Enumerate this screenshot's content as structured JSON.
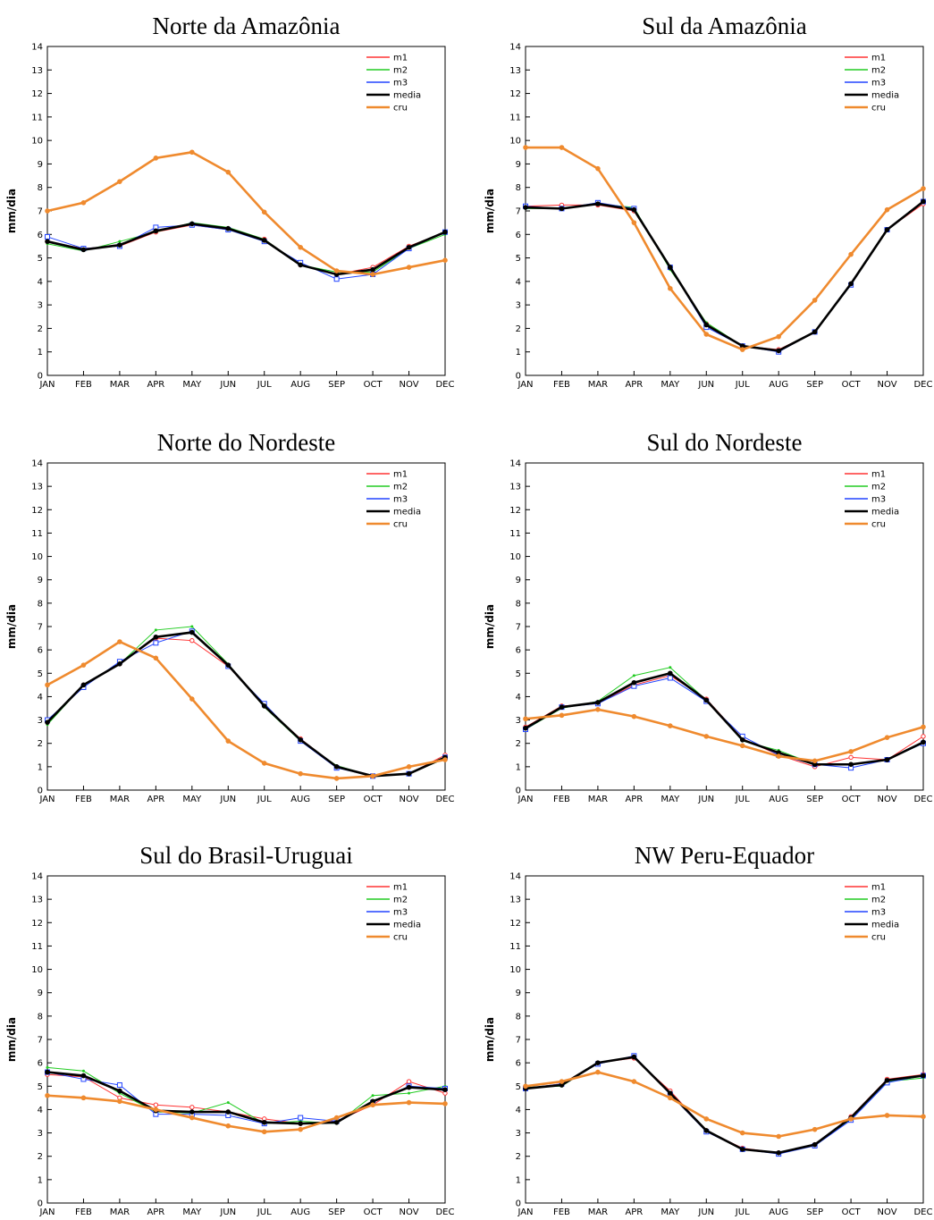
{
  "chart_data": [
    {
      "type": "line",
      "title": "Norte da Amazônia",
      "ylabel": "mm/dia",
      "legend": "upper right",
      "categories": [
        "JAN",
        "FEB",
        "MAR",
        "APR",
        "MAY",
        "JUN",
        "JUL",
        "AUG",
        "SEP",
        "OCT",
        "NOV",
        "DEC"
      ],
      "ylim": [
        0,
        14
      ],
      "yticks": [
        0,
        1,
        2,
        3,
        4,
        5,
        6,
        7,
        8,
        9,
        10,
        11,
        12,
        13,
        14
      ],
      "series": [
        {
          "name": "m1",
          "color": "#ff3333",
          "values": [
            5.7,
            5.4,
            5.5,
            6.1,
            6.4,
            6.2,
            5.8,
            4.7,
            4.3,
            4.6,
            5.5,
            6.1
          ]
        },
        {
          "name": "m2",
          "color": "#22cc22",
          "values": [
            5.6,
            5.3,
            5.7,
            6.1,
            6.5,
            6.3,
            5.8,
            4.7,
            4.4,
            4.4,
            5.4,
            6.0
          ]
        },
        {
          "name": "m3",
          "color": "#2244ff",
          "values": [
            5.9,
            5.4,
            5.5,
            6.3,
            6.4,
            6.2,
            5.7,
            4.8,
            4.1,
            4.3,
            5.4,
            6.1
          ]
        },
        {
          "name": "media",
          "color": "#000000",
          "values": [
            5.7,
            5.35,
            5.55,
            6.15,
            6.45,
            6.25,
            5.75,
            4.7,
            4.3,
            4.5,
            5.45,
            6.1
          ]
        },
        {
          "name": "cru",
          "color": "#ef8a2e",
          "values": [
            7.0,
            7.35,
            8.25,
            9.25,
            9.5,
            8.65,
            6.95,
            5.45,
            4.45,
            4.3,
            4.6,
            4.9
          ]
        }
      ]
    },
    {
      "type": "line",
      "title": "Sul da Amazônia",
      "ylabel": "mm/dia",
      "legend": "upper right",
      "categories": [
        "JAN",
        "FEB",
        "MAR",
        "APR",
        "MAY",
        "JUN",
        "JUL",
        "AUG",
        "SEP",
        "OCT",
        "NOV",
        "DEC"
      ],
      "ylim": [
        0,
        14
      ],
      "yticks": [
        0,
        1,
        2,
        3,
        4,
        5,
        6,
        7,
        8,
        9,
        10,
        11,
        12,
        13,
        14
      ],
      "series": [
        {
          "name": "m1",
          "color": "#ff3333",
          "values": [
            7.2,
            7.25,
            7.25,
            7.0,
            4.6,
            2.2,
            1.25,
            1.1,
            1.85,
            3.9,
            6.2,
            7.3
          ]
        },
        {
          "name": "m2",
          "color": "#22cc22",
          "values": [
            7.1,
            7.1,
            7.3,
            7.15,
            4.5,
            2.25,
            1.25,
            1.05,
            1.85,
            3.9,
            6.2,
            7.4
          ]
        },
        {
          "name": "m3",
          "color": "#2244ff",
          "values": [
            7.2,
            7.1,
            7.35,
            7.1,
            4.6,
            2.05,
            1.25,
            1.0,
            1.85,
            3.85,
            6.2,
            7.4
          ]
        },
        {
          "name": "media",
          "color": "#000000",
          "values": [
            7.15,
            7.1,
            7.3,
            7.05,
            4.6,
            2.15,
            1.25,
            1.05,
            1.85,
            3.9,
            6.2,
            7.4
          ]
        },
        {
          "name": "cru",
          "color": "#ef8a2e",
          "values": [
            9.7,
            9.7,
            8.8,
            6.5,
            3.7,
            1.75,
            1.1,
            1.65,
            3.2,
            5.15,
            7.05,
            7.95
          ]
        }
      ]
    },
    {
      "type": "line",
      "title": "Norte do Nordeste",
      "ylabel": "mm/dia",
      "legend": "upper right",
      "categories": [
        "JAN",
        "FEB",
        "MAR",
        "APR",
        "MAY",
        "JUN",
        "JUL",
        "AUG",
        "SEP",
        "OCT",
        "NOV",
        "DEC"
      ],
      "ylim": [
        0,
        14
      ],
      "yticks": [
        0,
        1,
        2,
        3,
        4,
        5,
        6,
        7,
        8,
        9,
        10,
        11,
        12,
        13,
        14
      ],
      "series": [
        {
          "name": "m1",
          "color": "#ff3333",
          "values": [
            2.9,
            4.5,
            5.4,
            6.5,
            6.4,
            5.3,
            3.6,
            2.2,
            1.0,
            0.6,
            0.7,
            1.5
          ]
        },
        {
          "name": "m2",
          "color": "#22cc22",
          "values": [
            2.8,
            4.5,
            5.4,
            6.85,
            7.0,
            5.4,
            3.55,
            2.1,
            1.05,
            0.6,
            0.7,
            1.35
          ]
        },
        {
          "name": "m3",
          "color": "#2244ff",
          "values": [
            3.0,
            4.4,
            5.5,
            6.3,
            6.8,
            5.3,
            3.7,
            2.1,
            0.95,
            0.6,
            0.7,
            1.4
          ]
        },
        {
          "name": "media",
          "color": "#000000",
          "values": [
            2.9,
            4.5,
            5.4,
            6.55,
            6.75,
            5.35,
            3.6,
            2.15,
            1.0,
            0.6,
            0.7,
            1.4
          ]
        },
        {
          "name": "cru",
          "color": "#ef8a2e",
          "values": [
            4.5,
            5.35,
            6.35,
            5.65,
            3.9,
            2.1,
            1.15,
            0.7,
            0.5,
            0.6,
            1.0,
            1.3
          ]
        }
      ]
    },
    {
      "type": "line",
      "title": "Sul do Nordeste",
      "ylabel": "mm/dia",
      "legend": "upper right",
      "categories": [
        "JAN",
        "FEB",
        "MAR",
        "APR",
        "MAY",
        "JUN",
        "JUL",
        "AUG",
        "SEP",
        "OCT",
        "NOV",
        "DEC"
      ],
      "ylim": [
        0,
        14
      ],
      "yticks": [
        0,
        1,
        2,
        3,
        4,
        5,
        6,
        7,
        8,
        9,
        10,
        11,
        12,
        13,
        14
      ],
      "series": [
        {
          "name": "m1",
          "color": "#ff3333",
          "values": [
            2.7,
            3.6,
            3.7,
            4.5,
            4.9,
            3.9,
            2.2,
            1.5,
            1.0,
            1.4,
            1.3,
            2.3
          ]
        },
        {
          "name": "m2",
          "color": "#22cc22",
          "values": [
            2.6,
            3.5,
            3.8,
            4.9,
            5.25,
            3.85,
            2.1,
            1.7,
            1.1,
            1.1,
            1.3,
            2.0
          ]
        },
        {
          "name": "m3",
          "color": "#2244ff",
          "values": [
            2.6,
            3.55,
            3.7,
            4.45,
            4.8,
            3.8,
            2.3,
            1.5,
            1.1,
            0.95,
            1.3,
            2.0
          ]
        },
        {
          "name": "media",
          "color": "#000000",
          "values": [
            2.65,
            3.55,
            3.75,
            4.6,
            5.0,
            3.85,
            2.15,
            1.6,
            1.1,
            1.1,
            1.3,
            2.05
          ]
        },
        {
          "name": "cru",
          "color": "#ef8a2e",
          "values": [
            3.05,
            3.2,
            3.45,
            3.15,
            2.75,
            2.3,
            1.9,
            1.45,
            1.25,
            1.65,
            2.25,
            2.7
          ]
        }
      ]
    },
    {
      "type": "line",
      "title": "Sul do Brasil-Uruguai",
      "ylabel": "mm/dia",
      "legend": "upper right",
      "categories": [
        "JAN",
        "FEB",
        "MAR",
        "APR",
        "MAY",
        "JUN",
        "JUL",
        "AUG",
        "SEP",
        "OCT",
        "NOV",
        "DEC"
      ],
      "ylim": [
        0,
        14
      ],
      "yticks": [
        0,
        1,
        2,
        3,
        4,
        5,
        6,
        7,
        8,
        9,
        10,
        11,
        12,
        13,
        14
      ],
      "series": [
        {
          "name": "m1",
          "color": "#ff3333",
          "values": [
            5.5,
            5.4,
            4.5,
            4.2,
            4.1,
            3.9,
            3.6,
            3.4,
            3.5,
            4.2,
            5.2,
            4.7
          ]
        },
        {
          "name": "m2",
          "color": "#22cc22",
          "values": [
            5.8,
            5.65,
            4.7,
            3.9,
            3.85,
            4.3,
            3.4,
            3.5,
            3.4,
            4.6,
            4.7,
            5.0
          ]
        },
        {
          "name": "m3",
          "color": "#2244ff",
          "values": [
            5.6,
            5.3,
            5.05,
            3.8,
            3.8,
            3.75,
            3.4,
            3.65,
            3.5,
            4.3,
            5.0,
            4.9
          ]
        },
        {
          "name": "media",
          "color": "#000000",
          "values": [
            5.6,
            5.45,
            4.8,
            3.95,
            3.9,
            3.9,
            3.45,
            3.4,
            3.45,
            4.35,
            4.95,
            4.85
          ]
        },
        {
          "name": "cru",
          "color": "#ef8a2e",
          "values": [
            4.6,
            4.5,
            4.35,
            4.0,
            3.65,
            3.3,
            3.05,
            3.15,
            3.65,
            4.2,
            4.3,
            4.25
          ]
        }
      ]
    },
    {
      "type": "line",
      "title": "NW Peru-Equador",
      "ylabel": "mm/dia",
      "legend": "upper right",
      "categories": [
        "JAN",
        "FEB",
        "MAR",
        "APR",
        "MAY",
        "JUN",
        "JUL",
        "AUG",
        "SEP",
        "OCT",
        "NOV",
        "DEC"
      ],
      "ylim": [
        0,
        14
      ],
      "yticks": [
        0,
        1,
        2,
        3,
        4,
        5,
        6,
        7,
        8,
        9,
        10,
        11,
        12,
        13,
        14
      ],
      "series": [
        {
          "name": "m1",
          "color": "#ff3333",
          "values": [
            4.9,
            5.1,
            6.0,
            6.2,
            4.8,
            3.1,
            2.35,
            2.15,
            2.5,
            3.7,
            5.3,
            5.5
          ]
        },
        {
          "name": "m2",
          "color": "#22cc22",
          "values": [
            4.95,
            5.0,
            6.0,
            6.25,
            4.7,
            3.1,
            2.3,
            2.15,
            2.45,
            3.6,
            5.2,
            5.35
          ]
        },
        {
          "name": "m3",
          "color": "#2244ff",
          "values": [
            4.9,
            5.1,
            5.95,
            6.3,
            4.65,
            3.05,
            2.3,
            2.1,
            2.45,
            3.55,
            5.15,
            5.45
          ]
        },
        {
          "name": "media",
          "color": "#000000",
          "values": [
            4.9,
            5.05,
            6.0,
            6.25,
            4.7,
            3.1,
            2.3,
            2.15,
            2.5,
            3.65,
            5.25,
            5.45
          ]
        },
        {
          "name": "cru",
          "color": "#ef8a2e",
          "values": [
            5.0,
            5.2,
            5.6,
            5.2,
            4.5,
            3.6,
            3.0,
            2.85,
            3.15,
            3.6,
            3.75,
            3.7
          ]
        }
      ]
    }
  ]
}
